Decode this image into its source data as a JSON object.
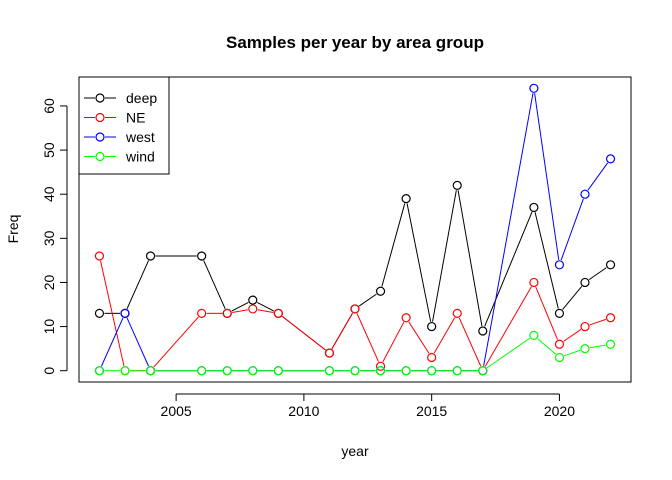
{
  "chart_data": {
    "type": "line",
    "title": "Samples per year by area group",
    "xlabel": "year",
    "ylabel": "Freq",
    "xlim": [
      2001.2,
      2022.8
    ],
    "ylim": [
      -2.56,
      66.56
    ],
    "xticks": [
      2005,
      2010,
      2015,
      2020
    ],
    "yticks": [
      0,
      10,
      20,
      30,
      40,
      50,
      60
    ],
    "legend_position": "top-left",
    "grid": false,
    "x": [
      2002,
      2003,
      2004,
      2006,
      2007,
      2008,
      2009,
      2011,
      2012,
      2013,
      2014,
      2015,
      2016,
      2017,
      2019,
      2020,
      2021,
      2022
    ],
    "series": [
      {
        "name": "deep",
        "color": "#000000",
        "values": [
          13,
          13,
          26,
          26,
          13,
          16,
          13,
          4,
          14,
          18,
          39,
          10,
          42,
          9,
          37,
          13,
          20,
          24
        ]
      },
      {
        "name": "NE",
        "color": "#ff0000",
        "values": [
          26,
          0,
          0,
          13,
          13,
          14,
          13,
          4,
          14,
          1,
          12,
          3,
          13,
          0,
          20,
          6,
          10,
          12
        ]
      },
      {
        "name": "west",
        "color": "#0000ff",
        "values": [
          0,
          13,
          0,
          0,
          0,
          0,
          0,
          0,
          0,
          0,
          0,
          0,
          0,
          0,
          64,
          24,
          40,
          48
        ]
      },
      {
        "name": "wind",
        "color": "#00ff00",
        "values": [
          0,
          0,
          0,
          0,
          0,
          0,
          0,
          0,
          0,
          0,
          0,
          0,
          0,
          0,
          8,
          3,
          5,
          6
        ]
      }
    ]
  }
}
